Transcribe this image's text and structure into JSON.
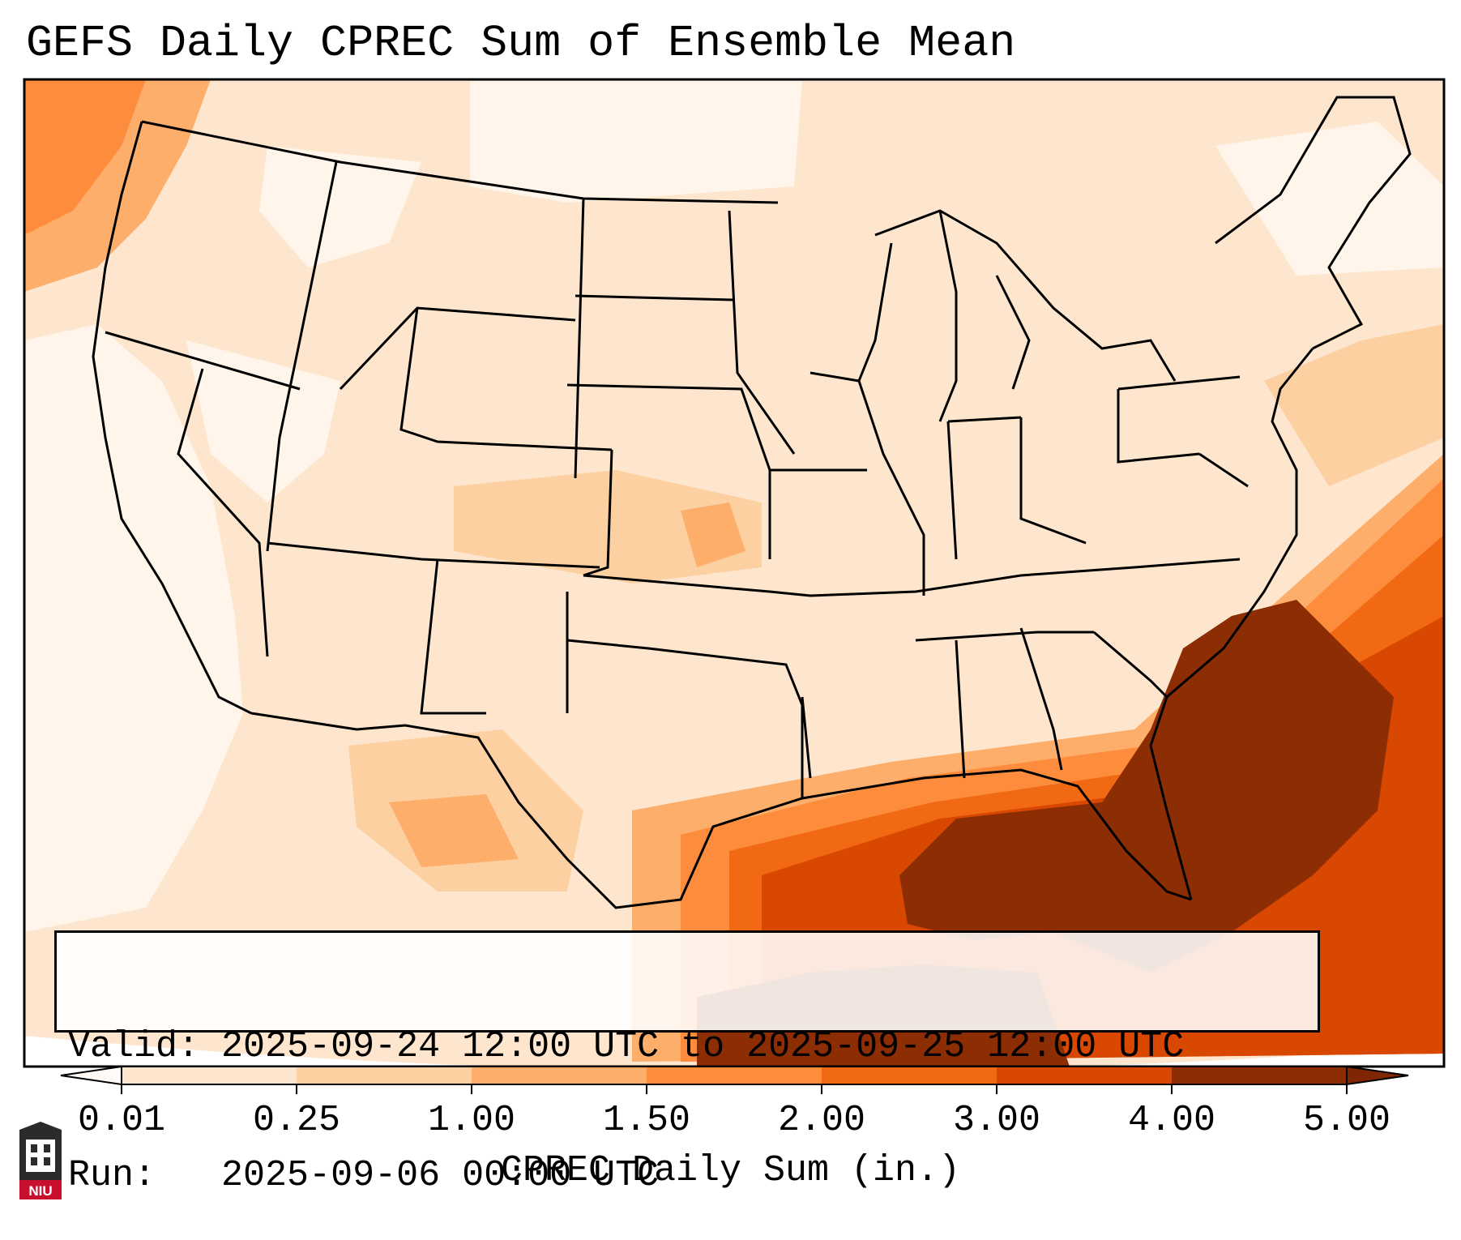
{
  "title": "GEFS Daily CPREC Sum of Ensemble Mean",
  "info": {
    "valid_label": "Valid:",
    "valid_value": "2025-09-24 12:00 UTC to 2025-09-25 12:00 UTC",
    "run_label": "Run:",
    "run_value": "2025-09-06 00:00 UTC"
  },
  "colorbar": {
    "label": "CPREC Daily Sum (in.)",
    "ticks": [
      "0.01",
      "0.25",
      "1.00",
      "1.50",
      "2.00",
      "3.00",
      "4.00",
      "5.00"
    ],
    "colors": [
      "#fff5eb",
      "#fee6ce",
      "#fdd0a2",
      "#fdae6b",
      "#fd8d3c",
      "#f16913",
      "#d94801",
      "#8c2d04"
    ],
    "extend_under_color": "#fffaf5",
    "extend_over_color": "#7f2704"
  },
  "logo": {
    "text": "NIU",
    "color": "#c8102e"
  }
}
